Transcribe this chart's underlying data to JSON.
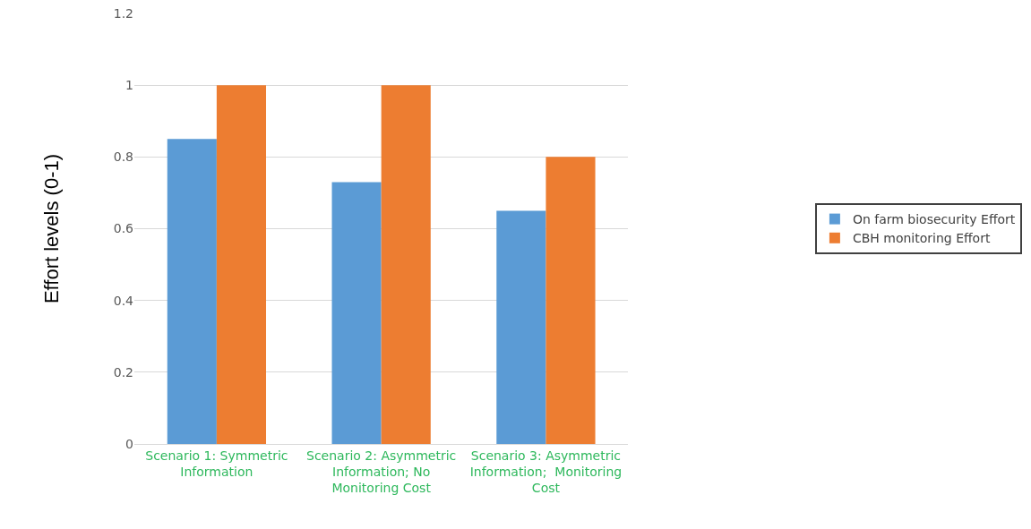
{
  "chart_data": {
    "type": "bar",
    "ylabel": "Effort levels (0-1)",
    "categories": [
      "Scenario 1: Symmetric Information",
      "Scenario 2: Asymmetric Information; No Monitoring Cost",
      "Scenario 3: Asymmetric Information;  Monitoring Cost"
    ],
    "series": [
      {
        "name": "On farm biosecurity Effort",
        "color": "#5b9bd5",
        "values": [
          0.85,
          0.73,
          0.65
        ]
      },
      {
        "name": "CBH monitoring Effort",
        "color": "#ed7d31",
        "values": [
          1,
          1,
          0.8
        ]
      }
    ],
    "ylim": [
      0,
      1.2
    ],
    "yticks": [
      0,
      0.2,
      0.4,
      0.6,
      0.8,
      1,
      1.2
    ],
    "grid": "y",
    "legend": "right"
  }
}
